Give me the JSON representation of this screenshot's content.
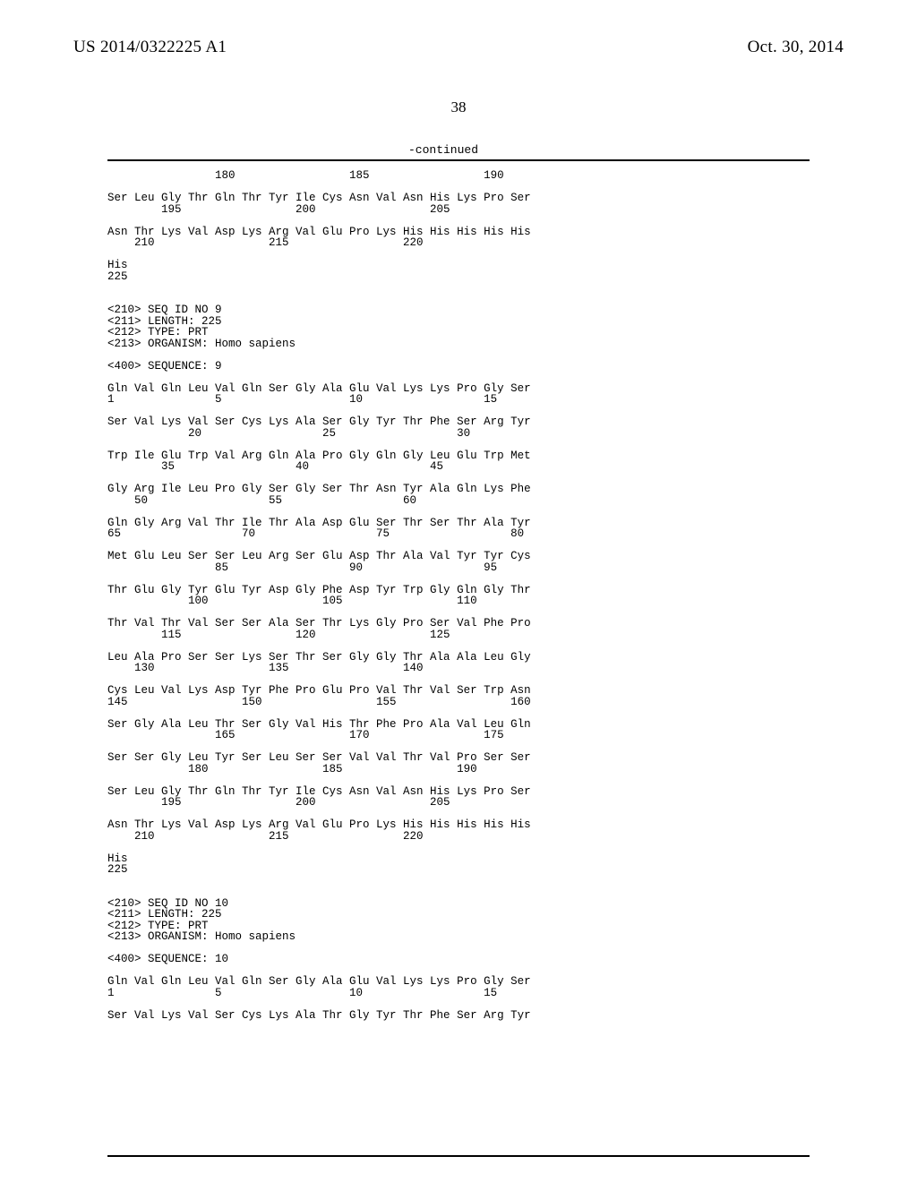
{
  "header": {
    "left": "US 2014/0322225 A1",
    "right": "Oct. 30, 2014"
  },
  "page_number": "38",
  "continued": "-continued",
  "listing": "                180                 185                 190\n\nSer Leu Gly Thr Gln Thr Tyr Ile Cys Asn Val Asn His Lys Pro Ser\n        195                 200                 205\n\nAsn Thr Lys Val Asp Lys Arg Val Glu Pro Lys His His His His His\n    210                 215                 220\n\nHis\n225\n\n\n<210> SEQ ID NO 9\n<211> LENGTH: 225\n<212> TYPE: PRT\n<213> ORGANISM: Homo sapiens\n\n<400> SEQUENCE: 9\n\nGln Val Gln Leu Val Gln Ser Gly Ala Glu Val Lys Lys Pro Gly Ser\n1               5                   10                  15\n\nSer Val Lys Val Ser Cys Lys Ala Ser Gly Tyr Thr Phe Ser Arg Tyr\n            20                  25                  30\n\nTrp Ile Glu Trp Val Arg Gln Ala Pro Gly Gln Gly Leu Glu Trp Met\n        35                  40                  45\n\nGly Arg Ile Leu Pro Gly Ser Gly Ser Thr Asn Tyr Ala Gln Lys Phe\n    50                  55                  60\n\nGln Gly Arg Val Thr Ile Thr Ala Asp Glu Ser Thr Ser Thr Ala Tyr\n65                  70                  75                  80\n\nMet Glu Leu Ser Ser Leu Arg Ser Glu Asp Thr Ala Val Tyr Tyr Cys\n                85                  90                  95\n\nThr Glu Gly Tyr Glu Tyr Asp Gly Phe Asp Tyr Trp Gly Gln Gly Thr\n            100                 105                 110\n\nThr Val Thr Val Ser Ser Ala Ser Thr Lys Gly Pro Ser Val Phe Pro\n        115                 120                 125\n\nLeu Ala Pro Ser Ser Lys Ser Thr Ser Gly Gly Thr Ala Ala Leu Gly\n    130                 135                 140\n\nCys Leu Val Lys Asp Tyr Phe Pro Glu Pro Val Thr Val Ser Trp Asn\n145                 150                 155                 160\n\nSer Gly Ala Leu Thr Ser Gly Val His Thr Phe Pro Ala Val Leu Gln\n                165                 170                 175\n\nSer Ser Gly Leu Tyr Ser Leu Ser Ser Val Val Thr Val Pro Ser Ser\n            180                 185                 190\n\nSer Leu Gly Thr Gln Thr Tyr Ile Cys Asn Val Asn His Lys Pro Ser\n        195                 200                 205\n\nAsn Thr Lys Val Asp Lys Arg Val Glu Pro Lys His His His His His\n    210                 215                 220\n\nHis\n225\n\n\n<210> SEQ ID NO 10\n<211> LENGTH: 225\n<212> TYPE: PRT\n<213> ORGANISM: Homo sapiens\n\n<400> SEQUENCE: 10\n\nGln Val Gln Leu Val Gln Ser Gly Ala Glu Val Lys Lys Pro Gly Ser\n1               5                   10                  15\n\nSer Val Lys Val Ser Cys Lys Ala Thr Gly Tyr Thr Phe Ser Arg Tyr"
}
